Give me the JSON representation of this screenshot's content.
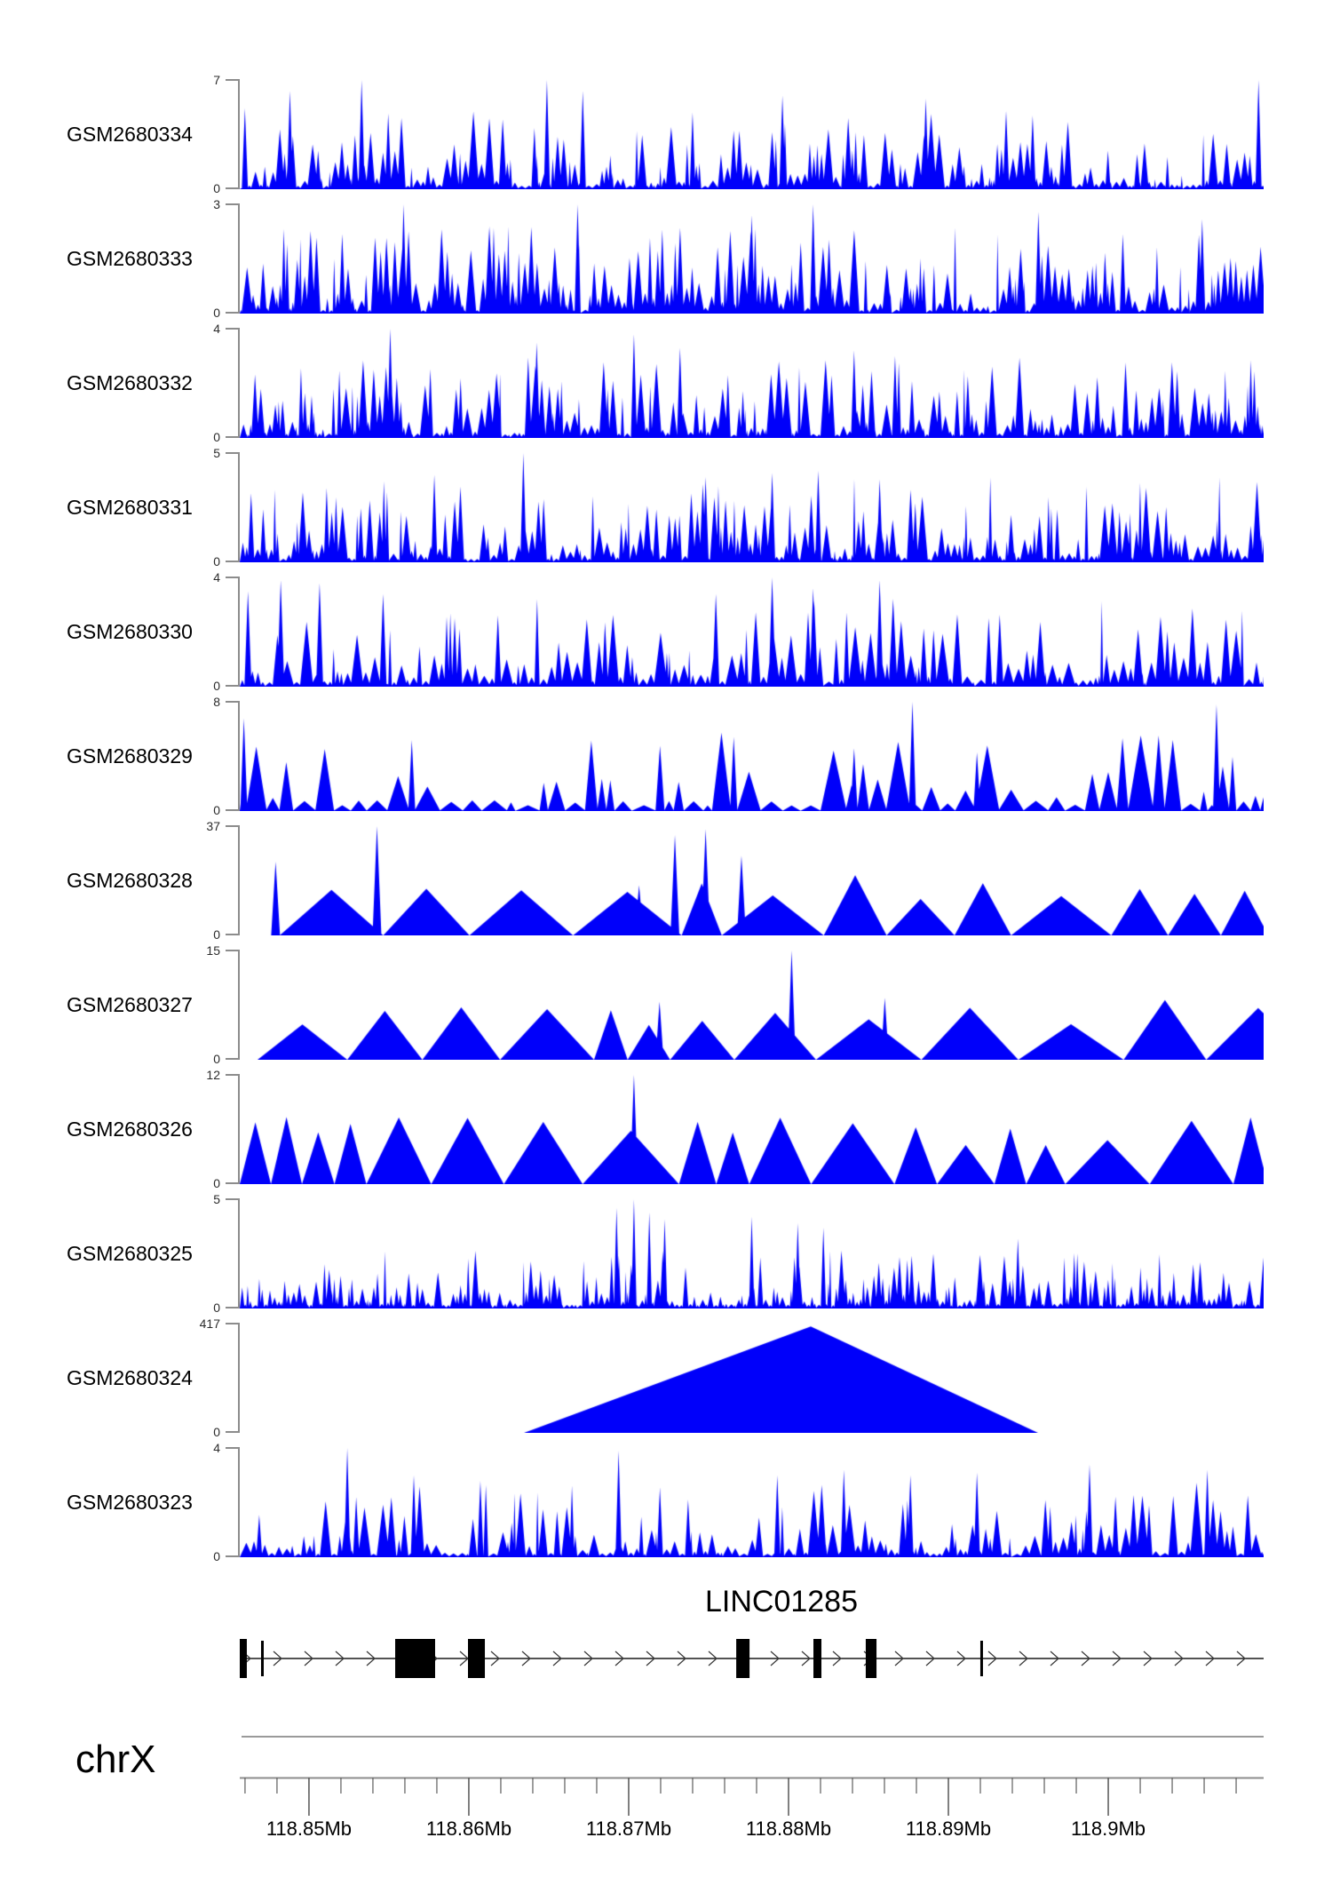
{
  "figure": {
    "background": "#ffffff",
    "blue": "#0000fa",
    "axis_color": "#8c8c8c",
    "tick_color": "#3c3c3c",
    "value_label_color": "#2b2b2b",
    "y_zero_label": "0"
  },
  "chart_data": {
    "type": "area",
    "description": "Genome-browser style read-coverage tracks for 12 GEO samples across the LINC01285 locus on chrX (118.85-118.9 Mb)",
    "tracks": [
      {
        "sample": "GSM2680334",
        "ymax": 7,
        "profile": "dense",
        "seed": 3,
        "gen": {
          "wMin": 2.5,
          "wMax": 13,
          "pow": 2.3,
          "hMin": 0.03,
          "hMax": 0.72,
          "adv": 0.72,
          "spikeW": 7
        },
        "highlights": [
          [
            0.005,
            5.2
          ],
          [
            0.049,
            6.3
          ],
          [
            0.119,
            7
          ],
          [
            0.3,
            7
          ],
          [
            0.335,
            6.3
          ],
          [
            0.53,
            6.0
          ],
          [
            0.67,
            5.8
          ],
          [
            0.995,
            7
          ]
        ]
      },
      {
        "sample": "GSM2680333",
        "ymax": 3,
        "profile": "dense",
        "seed": 7,
        "gen": {
          "wMin": 2.5,
          "wMax": 13,
          "pow": 1.9,
          "hMin": 0.03,
          "hMax": 0.8,
          "adv": 0.72,
          "spikeW": 7
        },
        "highlights": [
          [
            0.16,
            3
          ],
          [
            0.33,
            3
          ],
          [
            0.5,
            2.7
          ],
          [
            0.56,
            3
          ],
          [
            0.78,
            2.8
          ],
          [
            0.94,
            2.6
          ]
        ]
      },
      {
        "sample": "GSM2680332",
        "ymax": 4,
        "profile": "dense",
        "seed": 13,
        "gen": {
          "wMin": 2.5,
          "wMax": 13,
          "pow": 2.0,
          "hMin": 0.03,
          "hMax": 0.75,
          "adv": 0.72,
          "spikeW": 7
        },
        "highlights": [
          [
            0.147,
            4
          ],
          [
            0.29,
            3.5
          ],
          [
            0.385,
            3.8
          ],
          [
            0.43,
            3.3
          ],
          [
            0.6,
            3.2
          ],
          [
            0.64,
            3.0
          ]
        ]
      },
      {
        "sample": "GSM2680331",
        "ymax": 5,
        "profile": "dense",
        "seed": 21,
        "gen": {
          "wMin": 2.5,
          "wMax": 13,
          "pow": 2.0,
          "hMin": 0.03,
          "hMax": 0.78,
          "adv": 0.72,
          "spikeW": 7
        },
        "highlights": [
          [
            0.19,
            4
          ],
          [
            0.277,
            5
          ],
          [
            0.455,
            3.9
          ],
          [
            0.52,
            4.1
          ],
          [
            0.565,
            4.2
          ],
          [
            0.625,
            3.8
          ]
        ]
      },
      {
        "sample": "GSM2680330",
        "ymax": 4,
        "profile": "dense",
        "seed": 29,
        "gen": {
          "wMin": 3,
          "wMax": 16,
          "pow": 1.9,
          "hMin": 0.04,
          "hMax": 0.8,
          "adv": 0.8,
          "spikeW": 8
        },
        "highlights": [
          [
            0.008,
            3.5
          ],
          [
            0.04,
            3.9
          ],
          [
            0.078,
            3.8
          ],
          [
            0.14,
            3.4
          ],
          [
            0.465,
            3.4
          ],
          [
            0.52,
            4
          ],
          [
            0.56,
            3.6
          ],
          [
            0.625,
            3.9
          ]
        ]
      },
      {
        "sample": "GSM2680329",
        "ymax": 8,
        "profile": "dense",
        "seed": 35,
        "gen": {
          "wMin": 7,
          "wMax": 30,
          "pow": 1.8,
          "hMin": 0.05,
          "hMax": 0.72,
          "adv": 0.95,
          "spikeW": 8
        },
        "highlights": [
          [
            0.004,
            6.8
          ],
          [
            0.168,
            5.2
          ],
          [
            0.6,
            4.6
          ],
          [
            0.657,
            8
          ],
          [
            0.72,
            4.3
          ],
          [
            0.954,
            7.8
          ]
        ]
      },
      {
        "sample": "GSM2680328",
        "ymax": 37,
        "profile": "wide",
        "seed": 41,
        "gen": {
          "wMin": 40,
          "wMax": 130,
          "pow": 1.1,
          "hMin": 0.28,
          "hMax": 0.56,
          "adv": 1.0,
          "spikeW": 10,
          "startGap": 45
        },
        "highlights": [
          [
            0.035,
            25
          ],
          [
            0.134,
            37
          ],
          [
            0.39,
            17
          ],
          [
            0.425,
            34
          ],
          [
            0.455,
            36
          ],
          [
            0.49,
            27
          ]
        ]
      },
      {
        "sample": "GSM2680327",
        "ymax": 15,
        "profile": "wide",
        "seed": 47,
        "gen": {
          "wMin": 35,
          "wMax": 140,
          "pow": 1.1,
          "hMin": 0.3,
          "hMax": 0.58,
          "adv": 1.0,
          "spikeW": 9,
          "startGap": 20
        },
        "highlights": [
          [
            0.41,
            8
          ],
          [
            0.539,
            15
          ],
          [
            0.63,
            8.5
          ]
        ]
      },
      {
        "sample": "GSM2680326",
        "ymax": 12,
        "profile": "wide",
        "seed": 53,
        "gen": {
          "wMin": 30,
          "wMax": 110,
          "pow": 1.1,
          "hMin": 0.32,
          "hMax": 0.62,
          "adv": 1.0,
          "spikeW": 9
        },
        "highlights": [
          [
            0.385,
            12
          ]
        ]
      },
      {
        "sample": "GSM2680325",
        "ymax": 5,
        "profile": "dense",
        "seed": 59,
        "gen": {
          "wMin": 2.5,
          "wMax": 10,
          "pow": 2.4,
          "hMin": 0.03,
          "hMax": 0.55,
          "adv": 0.72,
          "spikeW": 6
        },
        "highlights": [
          [
            0.368,
            4.6
          ],
          [
            0.385,
            5
          ],
          [
            0.4,
            4.4
          ],
          [
            0.415,
            4.1
          ],
          [
            0.5,
            4.2
          ],
          [
            0.545,
            3.9
          ],
          [
            0.57,
            3.7
          ],
          [
            0.76,
            3.2
          ]
        ]
      },
      {
        "sample": "GSM2680324",
        "ymax": 417,
        "profile": "single-triangle",
        "seed": 1,
        "triangle": {
          "x1": 0.2776,
          "apex": 0.5577,
          "x2": 0.7797,
          "h": 0.965
        },
        "highlights": []
      },
      {
        "sample": "GSM2680323",
        "ymax": 4,
        "profile": "dense",
        "seed": 67,
        "gen": {
          "wMin": 3,
          "wMax": 15,
          "pow": 2.2,
          "hMin": 0.03,
          "hMax": 0.68,
          "adv": 0.75,
          "spikeW": 7
        },
        "highlights": [
          [
            0.105,
            4
          ],
          [
            0.17,
            3
          ],
          [
            0.235,
            2.8
          ],
          [
            0.37,
            3.9
          ],
          [
            0.525,
            3
          ],
          [
            0.59,
            3.2
          ],
          [
            0.655,
            3
          ],
          [
            0.72,
            3.1
          ],
          [
            0.83,
            3.4
          ],
          [
            0.945,
            3.2
          ]
        ]
      }
    ],
    "gene": {
      "name": "LINC01285",
      "strand": "forward",
      "exons": [
        [
          0.0,
          0.0069
        ],
        [
          0.1518,
          0.1908
        ],
        [
          0.2229,
          0.2394
        ],
        [
          0.4849,
          0.4979
        ],
        [
          0.5603,
          0.5681
        ],
        [
          0.6114,
          0.6219
        ]
      ],
      "thin_marks": [
        [
          0.0208,
          0.0234
        ],
        [
          0.7233,
          0.7259
        ]
      ]
    },
    "x_axis": {
      "chromosome": "chrX",
      "unit": "Mb",
      "start_mb": 118.84567,
      "end_mb": 118.90972,
      "minor_step_mb": 0.002,
      "major_ticks": [
        {
          "mb": 118.85,
          "label": "118.85Mb"
        },
        {
          "mb": 118.86,
          "label": "118.86Mb"
        },
        {
          "mb": 118.87,
          "label": "118.87Mb"
        },
        {
          "mb": 118.88,
          "label": "118.88Mb"
        },
        {
          "mb": 118.89,
          "label": "118.89Mb"
        },
        {
          "mb": 118.9,
          "label": "118.9Mb"
        }
      ]
    }
  }
}
